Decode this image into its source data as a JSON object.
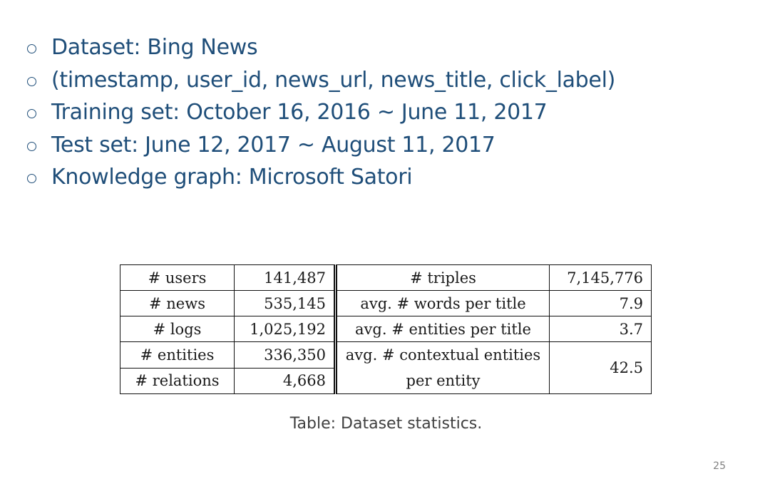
{
  "bullets": [
    "Dataset: Bing News",
    "(timestamp, user_id, news_url, news_title, click_label)",
    "Training set: October 16, 2016 ~ June 11, 2017",
    "Test set: June 12, 2017 ~ August 11, 2017",
    "Knowledge graph: Microsoft Satori"
  ],
  "table": {
    "left": [
      {
        "label": "# users",
        "value": "141,487"
      },
      {
        "label": "# news",
        "value": "535,145"
      },
      {
        "label": "# logs",
        "value": "1,025,192"
      },
      {
        "label": "# entities",
        "value": "336,350"
      },
      {
        "label": "# relations",
        "value": "4,668"
      }
    ],
    "right": [
      {
        "label": "# triples",
        "value": "7,145,776"
      },
      {
        "label": "avg. # words per title",
        "value": "7.9"
      },
      {
        "label": "avg. # entities per title",
        "value": "3.7"
      },
      {
        "label": "avg. # contextual entities per entity",
        "value": "42.5"
      }
    ]
  },
  "caption": "Table: Dataset statistics.",
  "page_number": "25"
}
